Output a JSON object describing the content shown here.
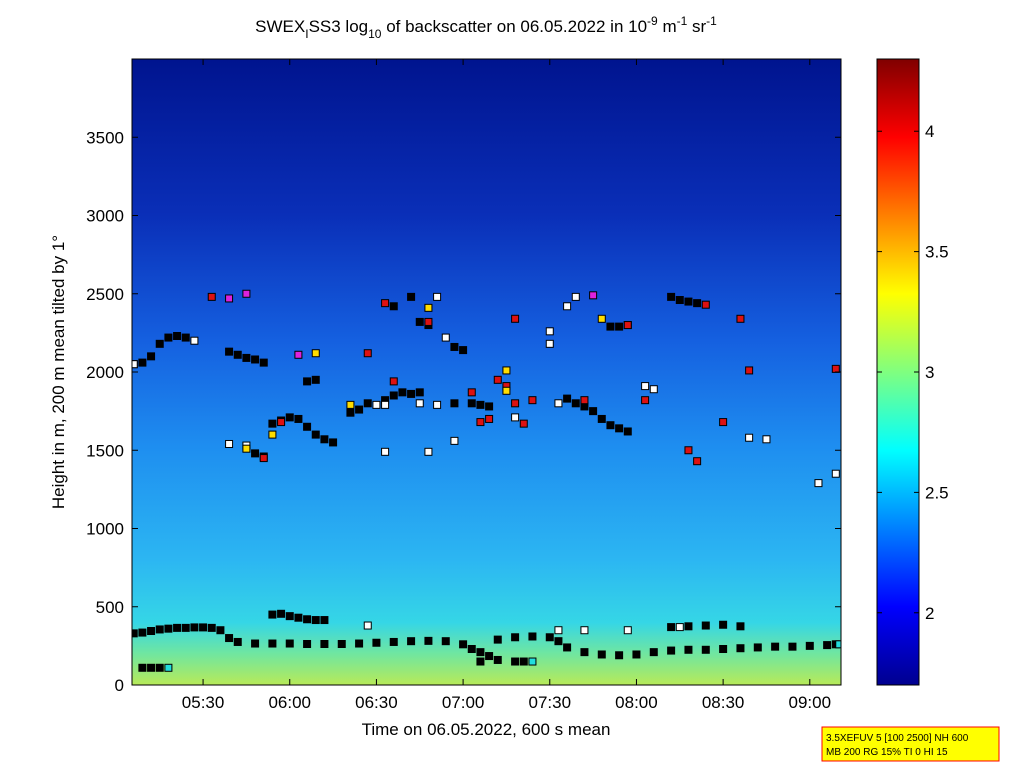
{
  "chart_data": {
    "type": "scatter",
    "title": [
      "SWEX",
      "I",
      "SS3 log",
      "10",
      " of backscatter on 06.05.2022 in 10",
      "-9",
      " m",
      "-1",
      " sr",
      "-1"
    ],
    "xlabel": "Time on 06.05.2022, 600 s mean",
    "ylabel": "Height in m, 200 m mean tilted by 1°",
    "xlim": [
      5.09,
      9.18
    ],
    "ylim": [
      0,
      4000
    ],
    "xticks": [
      {
        "value": 5.5,
        "label": "05:30"
      },
      {
        "value": 6.0,
        "label": "06:00"
      },
      {
        "value": 6.5,
        "label": "06:30"
      },
      {
        "value": 7.0,
        "label": "07:00"
      },
      {
        "value": 7.5,
        "label": "07:30"
      },
      {
        "value": 8.0,
        "label": "08:00"
      },
      {
        "value": 8.5,
        "label": "08:30"
      },
      {
        "value": 9.0,
        "label": "09:00"
      }
    ],
    "yticks": [
      0,
      500,
      1000,
      1500,
      2000,
      2500,
      3000,
      3500
    ],
    "clim": [
      1.7,
      4.3
    ],
    "cticks": [
      2,
      2.5,
      3,
      3.5,
      4
    ],
    "annotations": [
      "3.5XEFUV 5 [100 2500] NH 600",
      "MB 200 RG 15% TI 0 HI 15"
    ],
    "series": [
      {
        "color": "#000000",
        "x": [
          5.1,
          5.15,
          5.2,
          5.25,
          5.3,
          5.35,
          5.4,
          5.45,
          5.5,
          5.55,
          5.6,
          5.65,
          5.7,
          5.8,
          5.9,
          6.0,
          6.1,
          6.2,
          6.3,
          6.4,
          6.5,
          6.6,
          6.7,
          6.8,
          6.9,
          7.0,
          7.05,
          7.1,
          7.15,
          7.2,
          7.3,
          7.35,
          7.1,
          7.2,
          7.3,
          7.4,
          7.5,
          7.55,
          7.6,
          7.7,
          7.8,
          7.9,
          8.0,
          8.1,
          8.2,
          8.3,
          8.4,
          8.5,
          8.6,
          8.7,
          8.8,
          8.9,
          9.0,
          9.1,
          9.15,
          5.15,
          5.2,
          5.25,
          5.9,
          5.95,
          6.0,
          6.05,
          6.1,
          6.15,
          6.2,
          8.2,
          8.3,
          8.4,
          8.5,
          8.6,
          5.1,
          5.15,
          5.2,
          5.25,
          5.3,
          5.35,
          5.4,
          5.65,
          5.7,
          5.75,
          5.8,
          5.85,
          5.9,
          5.95,
          6.0,
          6.05,
          6.1,
          6.15,
          6.2,
          6.25,
          6.1,
          6.15,
          6.35,
          6.4,
          6.45,
          6.55,
          6.6,
          6.65,
          6.7,
          6.75,
          6.6,
          6.7,
          6.75,
          6.8,
          6.95,
          7.0,
          6.95,
          7.05,
          7.1,
          7.15,
          7.6,
          7.65,
          7.7,
          7.75,
          7.8,
          7.85,
          7.9,
          7.95,
          7.85,
          7.9,
          7.95,
          8.2,
          8.25,
          8.3,
          8.35,
          5.8,
          5.85
        ],
        "values": [
          330,
          335,
          345,
          355,
          360,
          365,
          365,
          368,
          368,
          365,
          350,
          300,
          275,
          265,
          265,
          265,
          262,
          262,
          262,
          265,
          270,
          275,
          280,
          282,
          280,
          260,
          230,
          210,
          185,
          160,
          150,
          150,
          150,
          290,
          305,
          310,
          305,
          280,
          240,
          210,
          195,
          190,
          195,
          210,
          220,
          225,
          225,
          230,
          235,
          240,
          245,
          245,
          250,
          255,
          260,
          110,
          110,
          110,
          450,
          455,
          440,
          430,
          420,
          415,
          415,
          370,
          375,
          380,
          385,
          375,
          2050,
          2060,
          2100,
          2180,
          2220,
          2230,
          2220,
          2130,
          2110,
          2090,
          2080,
          2060,
          1670,
          1690,
          1710,
          1700,
          1650,
          1600,
          1570,
          1550,
          1940,
          1950,
          1740,
          1760,
          1800,
          1820,
          1850,
          1870,
          1860,
          1870,
          2420,
          2480,
          2320,
          2300,
          2160,
          2140,
          1800,
          1800,
          1790,
          1780,
          1830,
          1800,
          1780,
          1750,
          1700,
          1660,
          1640,
          1620,
          2290,
          2290,
          2300,
          2480,
          2460,
          2450,
          2440,
          1480,
          1460
        ]
      },
      {
        "color": "#dd1111",
        "x": [
          5.55,
          5.85,
          5.95,
          6.45,
          6.55,
          6.8,
          7.05,
          7.15,
          7.2,
          7.25,
          7.3,
          7.35,
          7.4,
          7.7,
          7.95,
          8.05,
          8.3,
          8.35,
          8.4,
          8.5,
          8.6,
          8.65,
          9.15,
          6.6,
          7.1,
          7.3
        ],
        "values": [
          2480,
          1450,
          1680,
          2120,
          2440,
          2320,
          1870,
          1700,
          1950,
          1910,
          1800,
          1670,
          1820,
          1820,
          2300,
          1820,
          1500,
          1430,
          2430,
          1680,
          2340,
          2010,
          2020,
          1940,
          1680,
          2340
        ]
      },
      {
        "color": "#ffffff",
        "x": [
          5.1,
          5.45,
          5.65,
          5.75,
          6.5,
          6.55,
          6.55,
          6.85,
          6.9,
          6.95,
          7.5,
          7.5,
          7.6,
          7.65,
          8.05,
          8.1,
          8.65,
          8.75,
          9.05,
          9.15,
          6.8,
          6.85,
          7.3,
          7.55,
          6.75,
          7.7,
          7.95,
          8.25,
          6.45,
          7.55
        ],
        "values": [
          2050,
          2200,
          1540,
          1530,
          1790,
          1790,
          1490,
          2480,
          2220,
          1560,
          2260,
          2180,
          2420,
          2480,
          1910,
          1890,
          1580,
          1570,
          1290,
          1350,
          1490,
          1790,
          1710,
          1800,
          1800,
          350,
          350,
          370,
          380,
          350
        ]
      },
      {
        "color": "#ffdd00",
        "x": [
          6.15,
          5.9,
          6.35,
          6.8,
          7.25,
          7.25,
          7.8,
          5.75
        ],
        "values": [
          2120,
          1600,
          1790,
          2410,
          2010,
          1880,
          2340,
          1510
        ]
      },
      {
        "color": "#dd22dd",
        "x": [
          5.65,
          5.75,
          6.05,
          7.75
        ],
        "values": [
          2470,
          2500,
          2110,
          2490
        ]
      },
      {
        "color": "#22dddd",
        "x": [
          5.3,
          7.4,
          9.17
        ],
        "values": [
          110,
          150,
          260
        ]
      }
    ]
  }
}
